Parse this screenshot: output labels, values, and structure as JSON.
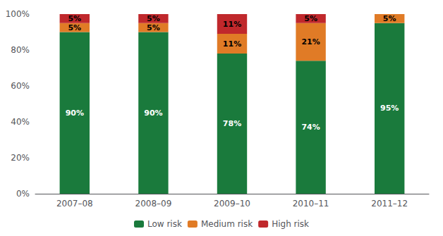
{
  "chart_data": {
    "type": "bar",
    "categories": [
      "2007–08",
      "2008–09",
      "2009–10",
      "2010–11",
      "2011–12"
    ],
    "series": [
      {
        "name": "Low risk",
        "color": "#1a7a3c",
        "values": [
          90,
          90,
          78,
          74,
          95
        ],
        "value_labels": [
          "90%",
          "90%",
          "78%",
          "74%",
          "95%"
        ]
      },
      {
        "name": "Medium risk",
        "color": "#e07b26",
        "values": [
          5,
          5,
          11,
          21,
          5
        ],
        "value_labels": [
          "5%",
          "5%",
          "11%",
          "21%",
          "5%"
        ]
      },
      {
        "name": "High risk",
        "color": "#c0282c",
        "values": [
          5,
          5,
          11,
          5,
          0
        ],
        "value_labels": [
          "5%",
          "5%",
          "11%",
          "5%",
          null
        ]
      }
    ],
    "ylim": [
      0,
      100
    ],
    "yticks": [
      {
        "value": 0,
        "label": "0%"
      },
      {
        "value": 20,
        "label": "20%"
      },
      {
        "value": 40,
        "label": "40%"
      },
      {
        "value": 60,
        "label": "60%"
      },
      {
        "value": 80,
        "label": "80%"
      },
      {
        "value": 100,
        "label": "100%"
      }
    ],
    "grid": false,
    "legend": "bottom",
    "stacked": true,
    "data_labels": true
  }
}
